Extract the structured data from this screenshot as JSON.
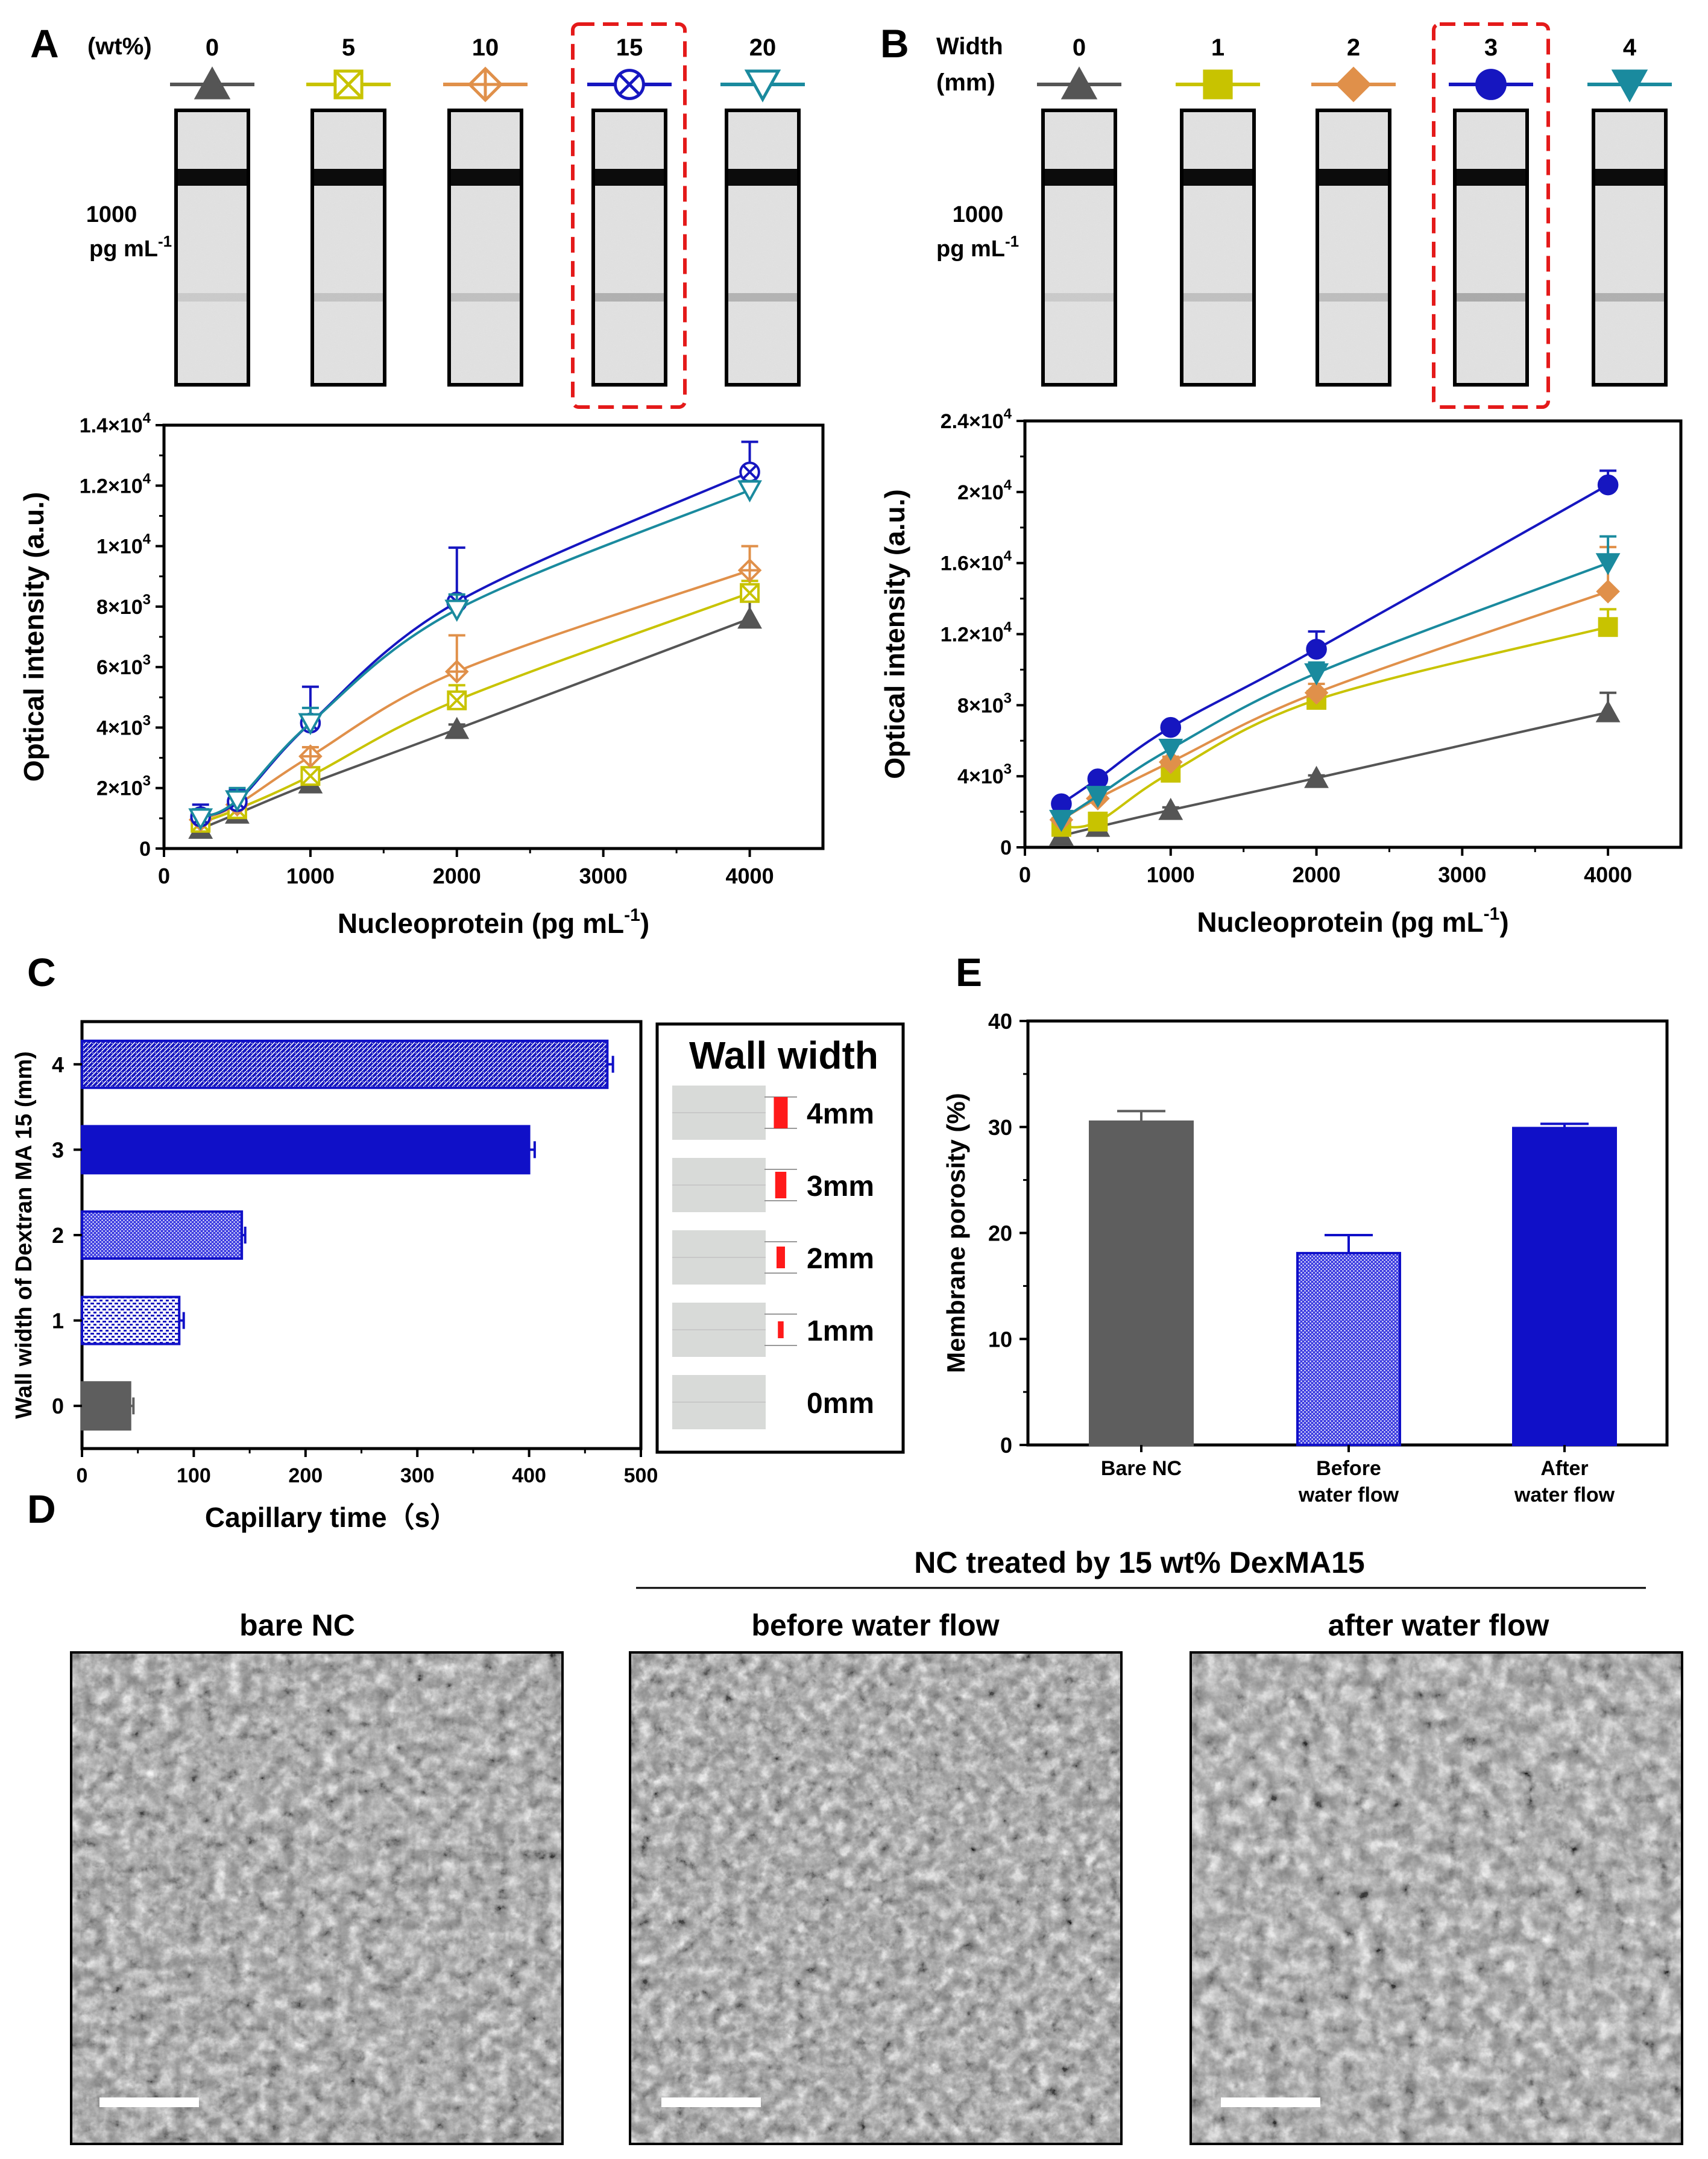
{
  "panel_labels": {
    "a": "A",
    "b": "B",
    "c": "C",
    "d": "D",
    "e": "E"
  },
  "colors": {
    "gray": "#555555",
    "olive": "#c8c300",
    "orange": "#e0904a",
    "blue": "#1616c0",
    "teal": "#1a8a9e",
    "red_dash": "#e41a1a",
    "bar_gray": "#5e5e5e",
    "strip_bg": "#e4e4e4",
    "wall_red": "#ff1a1a"
  },
  "panelA": {
    "header_label": "(wt%)",
    "highlight_index": 3,
    "strip_label_1": "1000",
    "strip_label_2": "pg mL",
    "strip_label_sup": "-1",
    "legend": [
      {
        "label": "0",
        "marker": "triangle-filled",
        "color": "#555555"
      },
      {
        "label": "5",
        "marker": "square-x-open",
        "color": "#c8c300"
      },
      {
        "label": "10",
        "marker": "diamond-plus-open",
        "color": "#e0904a"
      },
      {
        "label": "15",
        "marker": "circle-x-open",
        "color": "#1616c0"
      },
      {
        "label": "20",
        "marker": "triangle-down-open",
        "color": "#1a8a9e"
      }
    ]
  },
  "panelB": {
    "header_label_1": "Width",
    "header_label_2": "(mm)",
    "highlight_index": 3,
    "strip_label_1": "1000",
    "strip_label_2": "pg mL",
    "strip_label_sup": "-1",
    "legend": [
      {
        "label": "0",
        "marker": "triangle-filled",
        "color": "#555555"
      },
      {
        "label": "1",
        "marker": "square-filled",
        "color": "#c8c300"
      },
      {
        "label": "2",
        "marker": "diamond-filled",
        "color": "#e0904a"
      },
      {
        "label": "3",
        "marker": "circle-filled",
        "color": "#1616c0"
      },
      {
        "label": "4",
        "marker": "triangle-down-filled",
        "color": "#1a8a9e"
      }
    ]
  },
  "chart_data": [
    {
      "id": "A",
      "type": "line",
      "title": "",
      "xlabel": "Nucleoprotein (pg mL",
      "xlabel_sup": "-1",
      "xlabel_end": ")",
      "ylabel": "Optical intensity (a.u.)",
      "xlim": [
        0,
        4500
      ],
      "ylim": [
        0,
        14000
      ],
      "xticks": [
        0,
        1000,
        2000,
        3000,
        4000
      ],
      "xtick_labels": [
        "0",
        "1000",
        "2000",
        "3000",
        "4000"
      ],
      "yticks": [
        0,
        2000,
        4000,
        6000,
        8000,
        10000,
        12000,
        14000
      ],
      "ytick_labels": [
        {
          "base": "0",
          "sup": ""
        },
        {
          "base": "2×10",
          "sup": "3"
        },
        {
          "base": "4×10",
          "sup": "3"
        },
        {
          "base": "6×10",
          "sup": "3"
        },
        {
          "base": "8×10",
          "sup": "3"
        },
        {
          "base": "1×10",
          "sup": "4"
        },
        {
          "base": "1.2×10",
          "sup": "4"
        },
        {
          "base": "1.4×10",
          "sup": "4"
        }
      ],
      "x": [
        250,
        500,
        1000,
        2000,
        4000
      ],
      "series": [
        {
          "name": "0",
          "values": [
            650,
            1150,
            2150,
            3950,
            7600
          ],
          "errors": [
            150,
            200,
            150,
            150,
            1100
          ]
        },
        {
          "name": "5",
          "values": [
            850,
            1300,
            2400,
            4900,
            8450
          ],
          "errors": [
            200,
            200,
            250,
            500,
            400
          ]
        },
        {
          "name": "10",
          "values": [
            950,
            1450,
            3050,
            5850,
            9200
          ],
          "errors": [
            250,
            300,
            300,
            1200,
            800
          ]
        },
        {
          "name": "15",
          "values": [
            1050,
            1550,
            4150,
            8150,
            12450
          ],
          "errors": [
            400,
            400,
            1200,
            1800,
            1000
          ]
        },
        {
          "name": "20",
          "values": [
            1000,
            1600,
            4150,
            7900,
            11850
          ],
          "errors": [
            300,
            400,
            500,
            500,
            300
          ]
        }
      ]
    },
    {
      "id": "B",
      "type": "line",
      "title": "",
      "xlabel": "Nucleoprotein (pg mL",
      "xlabel_sup": "-1",
      "xlabel_end": ")",
      "ylabel": "Optical intensity (a.u.)",
      "xlim": [
        0,
        4500
      ],
      "ylim": [
        0,
        24000
      ],
      "xticks": [
        0,
        1000,
        2000,
        3000,
        4000
      ],
      "xtick_labels": [
        "0",
        "1000",
        "2000",
        "3000",
        "4000"
      ],
      "yticks": [
        0,
        4000,
        8000,
        12000,
        16000,
        20000,
        24000
      ],
      "ytick_labels": [
        {
          "base": "0",
          "sup": ""
        },
        {
          "base": "4×10",
          "sup": "3"
        },
        {
          "base": "8×10",
          "sup": "3"
        },
        {
          "base": "1.2×10",
          "sup": "4"
        },
        {
          "base": "1.6×10",
          "sup": "4"
        },
        {
          "base": "2×10",
          "sup": "4"
        },
        {
          "base": "2.4×10",
          "sup": "4"
        }
      ],
      "x": [
        250,
        500,
        1000,
        2000,
        4000
      ],
      "series": [
        {
          "name": "0",
          "values": [
            650,
            1150,
            2100,
            3900,
            7600
          ],
          "errors": [
            150,
            150,
            150,
            150,
            1100
          ]
        },
        {
          "name": "1",
          "values": [
            1150,
            1450,
            4200,
            8300,
            12400
          ],
          "errors": [
            200,
            200,
            300,
            500,
            1000
          ]
        },
        {
          "name": "2",
          "values": [
            1550,
            2750,
            4800,
            8700,
            14400
          ],
          "errors": [
            200,
            200,
            300,
            500,
            2500
          ]
        },
        {
          "name": "3",
          "values": [
            2450,
            3850,
            6750,
            11150,
            20400
          ],
          "errors": [
            200,
            200,
            300,
            1000,
            800
          ]
        },
        {
          "name": "4",
          "values": [
            1550,
            2900,
            5550,
            9800,
            16000
          ],
          "errors": [
            200,
            200,
            300,
            600,
            1500
          ]
        }
      ]
    },
    {
      "id": "C",
      "type": "bar",
      "orientation": "horizontal",
      "ylabel": "Wall width of Dextran MA 15  (mm)",
      "xlabel": "Capillary time（s）",
      "xlim": [
        0,
        500
      ],
      "xticks": [
        0,
        100,
        200,
        300,
        400,
        500
      ],
      "xtick_labels": [
        "0",
        "100",
        "200",
        "300",
        "400",
        "500"
      ],
      "categories": [
        "0",
        "1",
        "2",
        "3",
        "4"
      ],
      "values": [
        43,
        87,
        143,
        400,
        470
      ],
      "errors": [
        3,
        4,
        3,
        5,
        5
      ],
      "styles": [
        "solid-gray",
        "pattern-fine",
        "pattern-dots",
        "solid-blue",
        "pattern-dense"
      ]
    },
    {
      "id": "E",
      "type": "bar",
      "ylabel": "Membrane porosity (%)",
      "ylim": [
        0,
        40
      ],
      "yticks": [
        0,
        10,
        20,
        30,
        40
      ],
      "ytick_labels": [
        "0",
        "10",
        "20",
        "30",
        "40"
      ],
      "categories": [
        {
          "line1": "Bare NC",
          "line2": ""
        },
        {
          "line1": "Before",
          "line2": "water flow"
        },
        {
          "line1": "After",
          "line2": "water flow"
        }
      ],
      "values": [
        30.5,
        18.1,
        29.9
      ],
      "errors": [
        1.0,
        1.7,
        0.4
      ],
      "styles": [
        "solid-gray",
        "pattern-dots",
        "solid-blue"
      ]
    }
  ],
  "panelC_inset": {
    "title": "Wall width",
    "rows": [
      {
        "label": "4mm",
        "wall": 4
      },
      {
        "label": "3mm",
        "wall": 3
      },
      {
        "label": "2mm",
        "wall": 2
      },
      {
        "label": "1mm",
        "wall": 1
      },
      {
        "label": "0mm",
        "wall": 0
      }
    ]
  },
  "panelD": {
    "group_label": "NC treated by 15 wt% DexMA15",
    "images": [
      {
        "title": "bare NC"
      },
      {
        "title": "before water flow"
      },
      {
        "title": "after water flow"
      }
    ]
  }
}
